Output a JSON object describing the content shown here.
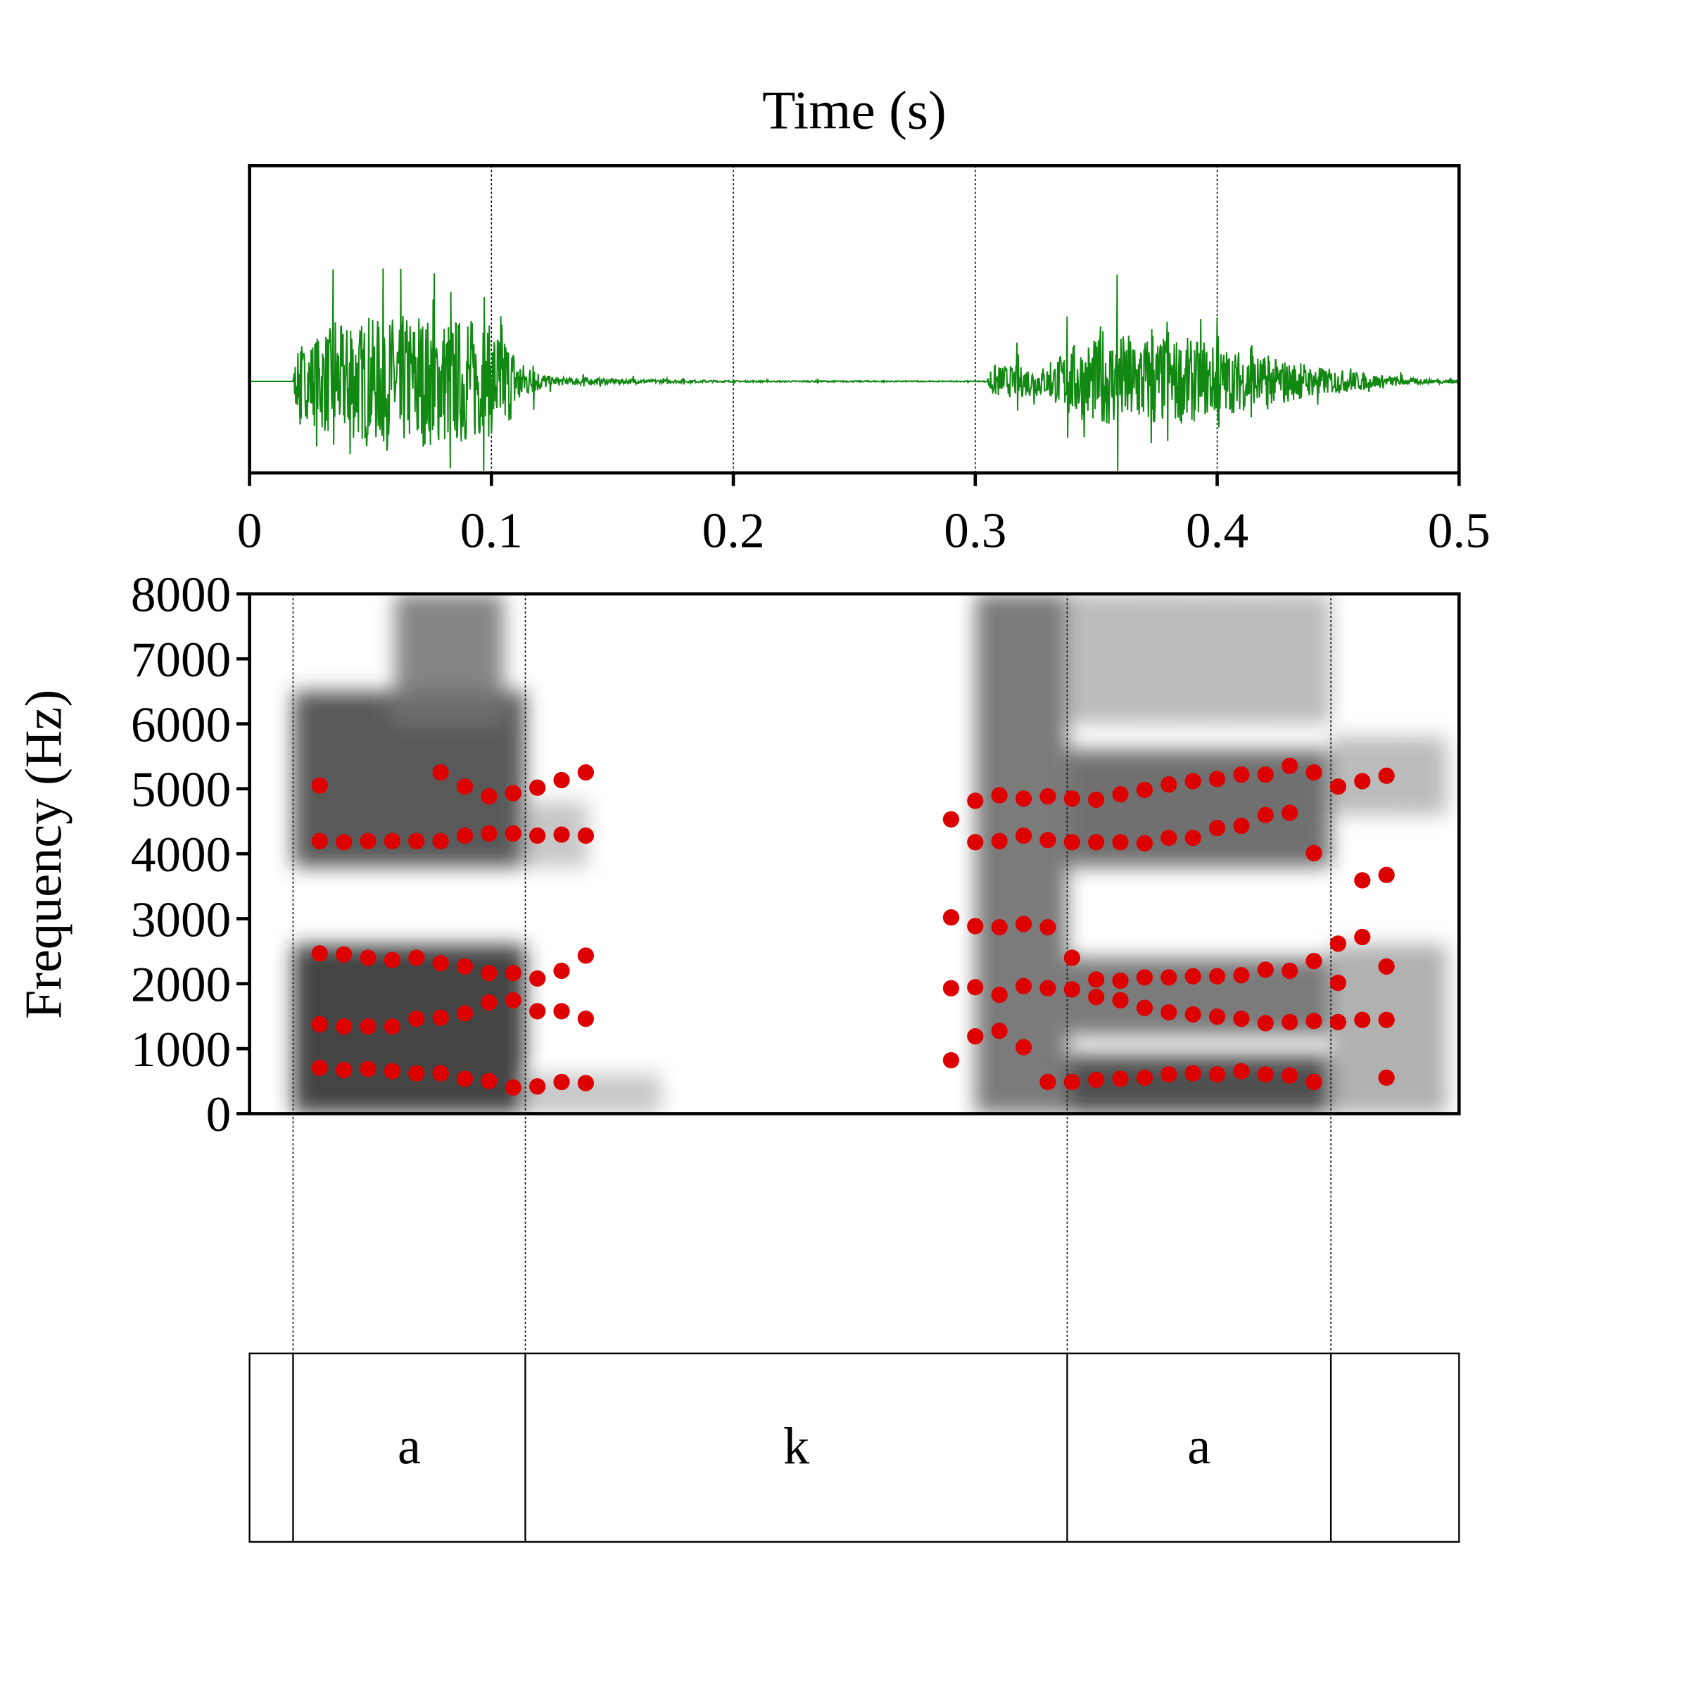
{
  "chart_data": {
    "type": "scatter",
    "title": "Time (s)",
    "xlabel": "Time (s)",
    "ylabel": "Frequency (Hz)",
    "xlim": [
      0,
      0.5
    ],
    "ylim": [
      0,
      8000
    ],
    "x_ticks": [
      "0",
      "0.1",
      "0.2",
      "0.3",
      "0.4",
      "0.5"
    ],
    "x_tick_values": [
      0,
      0.1,
      0.2,
      0.3,
      0.4,
      0.5
    ],
    "y_ticks": [
      "0",
      "1000",
      "2000",
      "3000",
      "4000",
      "5000",
      "6000",
      "7000",
      "8000"
    ],
    "y_tick_values": [
      0,
      1000,
      2000,
      3000,
      4000,
      5000,
      6000,
      7000,
      8000
    ],
    "colors": {
      "waveform": "#118811",
      "formant": "#dd0000",
      "axis": "#000000"
    },
    "waveform_envelope": [
      [
        0.0,
        0.0
      ],
      [
        0.018,
        0.0
      ],
      [
        0.019,
        0.35
      ],
      [
        0.03,
        0.7
      ],
      [
        0.06,
        0.9
      ],
      [
        0.09,
        0.85
      ],
      [
        0.105,
        0.7
      ],
      [
        0.113,
        0.25
      ],
      [
        0.125,
        0.06
      ],
      [
        0.16,
        0.03
      ],
      [
        0.2,
        0.01
      ],
      [
        0.3,
        0.005
      ],
      [
        0.305,
        0.005
      ],
      [
        0.306,
        0.22
      ],
      [
        0.33,
        0.2
      ],
      [
        0.34,
        0.5
      ],
      [
        0.36,
        0.65
      ],
      [
        0.39,
        0.55
      ],
      [
        0.41,
        0.4
      ],
      [
        0.44,
        0.2
      ],
      [
        0.46,
        0.12
      ],
      [
        0.48,
        0.04
      ],
      [
        0.5,
        0.02
      ]
    ],
    "spectrogram_regions": [
      [
        0.018,
        0.114,
        0,
        2600,
        0.85
      ],
      [
        0.018,
        0.114,
        3800,
        6500,
        0.75
      ],
      [
        0.06,
        0.105,
        6000,
        8000,
        0.55
      ],
      [
        0.114,
        0.17,
        0,
        600,
        0.25
      ],
      [
        0.114,
        0.14,
        3800,
        4800,
        0.25
      ],
      [
        0.3,
        0.338,
        0,
        8000,
        0.6
      ],
      [
        0.338,
        0.447,
        0,
        900,
        0.8
      ],
      [
        0.338,
        0.447,
        1200,
        2400,
        0.6
      ],
      [
        0.338,
        0.447,
        3800,
        5600,
        0.65
      ],
      [
        0.338,
        0.447,
        6000,
        8000,
        0.3
      ],
      [
        0.447,
        0.495,
        0,
        2600,
        0.35
      ],
      [
        0.447,
        0.495,
        4600,
        5800,
        0.3
      ]
    ],
    "formants": [
      {
        "t": 0.029,
        "hz": [
          705,
          1376,
          2466,
          4195,
          5050
        ]
      },
      {
        "t": 0.039,
        "hz": [
          671,
          1342,
          2450,
          4178,
          null
        ]
      },
      {
        "t": 0.049,
        "hz": [
          688,
          1342,
          2399,
          4195,
          null
        ]
      },
      {
        "t": 0.059,
        "hz": [
          654,
          1342,
          2366,
          4195,
          null
        ]
      },
      {
        "t": 0.069,
        "hz": [
          621,
          1460,
          2399,
          4195,
          null
        ]
      },
      {
        "t": 0.079,
        "hz": [
          621,
          1477,
          2315,
          4195,
          5252
        ]
      },
      {
        "t": 0.089,
        "hz": [
          537,
          1544,
          2265,
          4279,
          5034
        ]
      },
      {
        "t": 0.099,
        "hz": [
          503,
          1711,
          2164,
          4312,
          4883
        ]
      },
      {
        "t": 0.109,
        "hz": [
          403,
          1745,
          2164,
          4312,
          4933
        ]
      },
      {
        "t": 0.119,
        "hz": [
          419,
          1577,
          2080,
          4279,
          5017
        ]
      },
      {
        "t": 0.129,
        "hz": [
          487,
          1577,
          2198,
          4295,
          5134
        ]
      },
      {
        "t": 0.139,
        "hz": [
          470,
          1460,
          2433,
          4279,
          5252
        ]
      },
      {
        "t": 0.29,
        "hz": [
          822,
          1930,
          3020,
          4530,
          null
        ]
      },
      {
        "t": 0.3,
        "hz": [
          1190,
          1946,
          2886,
          4178,
          4815
        ]
      },
      {
        "t": 0.31,
        "hz": [
          1275,
          1829,
          2869,
          4195,
          4899
        ]
      },
      {
        "t": 0.32,
        "hz": [
          1023,
          1963,
          2919,
          4279,
          4849
        ]
      },
      {
        "t": 0.33,
        "hz": [
          487,
          1930,
          2869,
          4211,
          4883
        ]
      },
      {
        "t": 0.34,
        "hz": [
          487,
          1913,
          2399,
          4178,
          4849
        ]
      },
      {
        "t": 0.35,
        "hz": [
          520,
          1795,
          2064,
          4178,
          4832
        ]
      },
      {
        "t": 0.36,
        "hz": [
          537,
          1745,
          2047,
          4178,
          4916
        ]
      },
      {
        "t": 0.37,
        "hz": [
          554,
          1628,
          2097,
          4161,
          4983
        ]
      },
      {
        "t": 0.38,
        "hz": [
          604,
          1560,
          2097,
          4245,
          5067
        ]
      },
      {
        "t": 0.39,
        "hz": [
          621,
          1527,
          2114,
          4245,
          5117
        ]
      },
      {
        "t": 0.4,
        "hz": [
          604,
          1493,
          2114,
          4396,
          5151
        ]
      },
      {
        "t": 0.41,
        "hz": [
          654,
          1460,
          2131,
          4430,
          5218
        ]
      },
      {
        "t": 0.42,
        "hz": [
          604,
          1393,
          2215,
          4597,
          5218
        ]
      },
      {
        "t": 0.43,
        "hz": [
          587,
          1409,
          2198,
          4631,
          5352
        ]
      },
      {
        "t": 0.44,
        "hz": [
          487,
          1426,
          2349,
          4010,
          5252
        ]
      },
      {
        "t": 0.45,
        "hz": [
          1409,
          2013,
          2617,
          5034,
          null
        ]
      },
      {
        "t": 0.46,
        "hz": [
          1443,
          2718,
          3591,
          5117,
          null
        ]
      },
      {
        "t": 0.47,
        "hz": [
          554,
          1443,
          2265,
          3674,
          5201
        ]
      }
    ],
    "textgrid": {
      "boundaries": [
        0.018,
        0.114,
        0.338,
        0.447
      ],
      "intervals": [
        {
          "start": 0,
          "end": 0.018,
          "label": ""
        },
        {
          "start": 0.018,
          "end": 0.114,
          "label": "a"
        },
        {
          "start": 0.114,
          "end": 0.338,
          "label": "k"
        },
        {
          "start": 0.338,
          "end": 0.447,
          "label": "a"
        },
        {
          "start": 0.447,
          "end": 0.5,
          "label": ""
        }
      ]
    }
  }
}
